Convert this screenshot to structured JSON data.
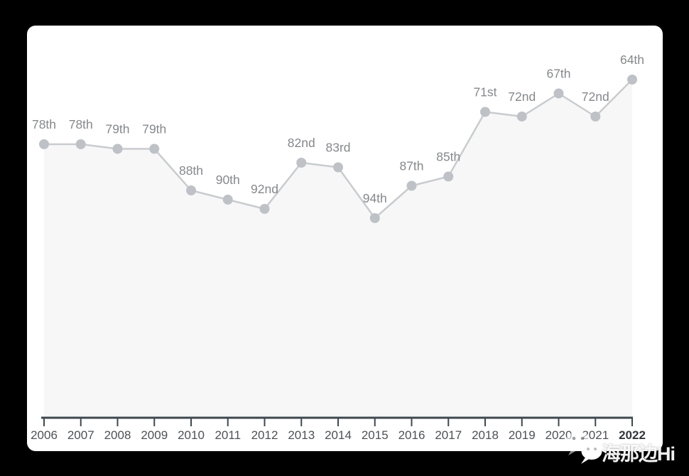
{
  "chart_data": {
    "type": "line",
    "title": "",
    "xlabel": "",
    "ylabel": "",
    "categories": [
      "2006",
      "2007",
      "2008",
      "2009",
      "2010",
      "2011",
      "2012",
      "2013",
      "2014",
      "2015",
      "2016",
      "2017",
      "2018",
      "2019",
      "2020",
      "2021",
      "2022"
    ],
    "values": [
      78,
      78,
      79,
      79,
      88,
      90,
      92,
      82,
      83,
      94,
      87,
      85,
      71,
      72,
      67,
      72,
      64
    ],
    "point_labels": [
      "78th",
      "78th",
      "79th",
      "79th",
      "88th",
      "90th",
      "92nd",
      "82nd",
      "83rd",
      "94th",
      "87th",
      "85th",
      "71st",
      "72nd",
      "67th",
      "72nd",
      "64th"
    ],
    "y_axis_note": "ordinal rank, better (lower) rank plotted higher; no y-axis shown",
    "grid": false,
    "legend": false,
    "area_fill": true
  },
  "colors": {
    "page_bg": "#000000",
    "card_bg": "#ffffff",
    "line": "#c9cccf",
    "point": "#bec2c6",
    "area_fill": "#f7f7f8",
    "rank_label": "#85888c",
    "year_label": "#4d5156",
    "year_label_last": "#33373c",
    "axis": "#3d4850"
  },
  "watermark": {
    "icon": "wechat-icon",
    "text": "海那边Hi"
  }
}
